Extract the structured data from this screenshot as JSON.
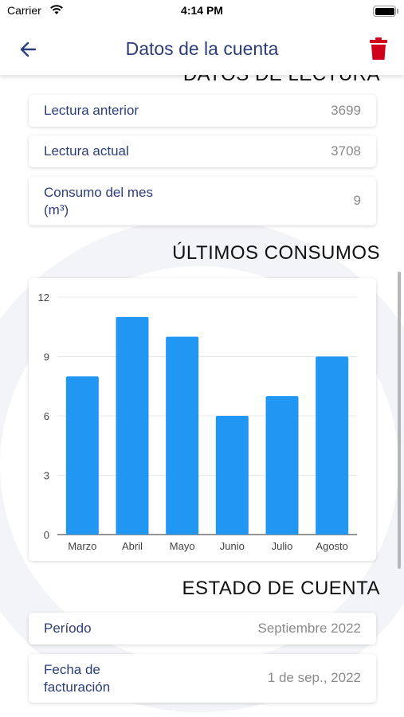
{
  "status_bar": {
    "carrier": "Carrier",
    "time": "4:14 PM"
  },
  "nav": {
    "title": "Datos de la cuenta",
    "back_icon": "arrow-left-icon",
    "delete_icon": "trash-icon",
    "delete_color": "#d0021b"
  },
  "sections": {
    "reading": {
      "title": "DATOS DE LECTURA",
      "rows": [
        {
          "label": "Lectura anterior",
          "value": "3699"
        },
        {
          "label": "Lectura actual",
          "value": "3708"
        },
        {
          "label": "Consumo del mes (m³)",
          "label_line1": "Consumo del mes",
          "label_line2": "(m³)",
          "value": "9"
        }
      ]
    },
    "consumption": {
      "title": "ÚLTIMOS CONSUMOS"
    },
    "account": {
      "title": "ESTADO DE CUENTA",
      "rows": [
        {
          "label": "Período",
          "value": "Septiembre 2022"
        },
        {
          "label": "Fecha de facturación",
          "label_line1": "Fecha de",
          "label_line2": "facturación",
          "value": "1 de sep., 2022"
        }
      ]
    }
  },
  "chart_data": {
    "type": "bar",
    "categories": [
      "Marzo",
      "Abril",
      "Mayo",
      "Junio",
      "Julio",
      "Agosto"
    ],
    "values": [
      8,
      11,
      10,
      6,
      7,
      9
    ],
    "ylim": [
      0,
      12
    ],
    "yticks": [
      0,
      3,
      6,
      9,
      12
    ],
    "bar_color": "#2196f3",
    "grid": true
  },
  "colors": {
    "primary_text": "#2c3e7a",
    "value_text": "#8a8a8a",
    "accent": "#2196f3"
  }
}
